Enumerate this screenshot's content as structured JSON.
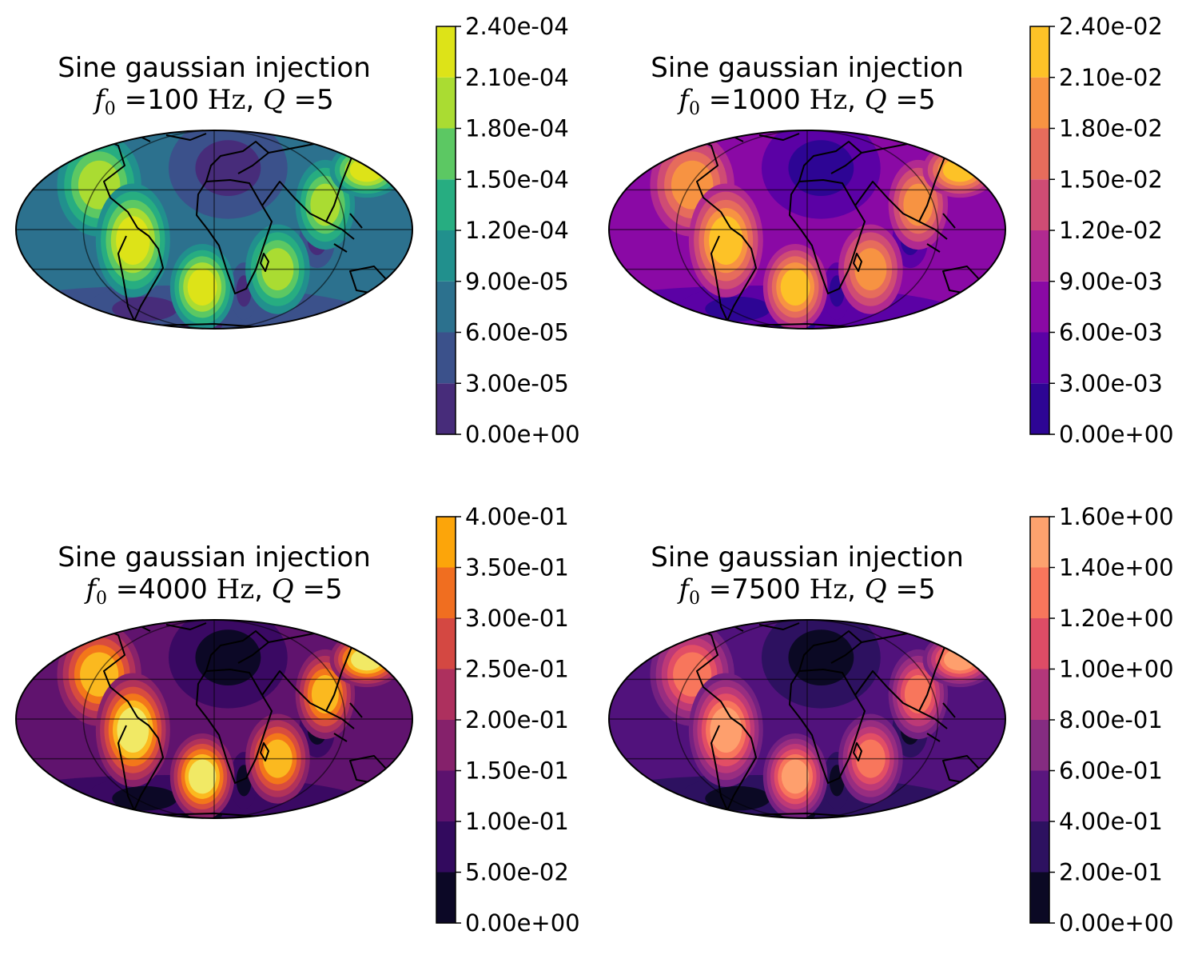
{
  "chart_data": [
    {
      "type": "heatmap",
      "projection": "mollweide",
      "title_line1": "Sine gaussian injection",
      "f0_label": "100",
      "unit": "Hz",
      "q_label": "5",
      "colormap": "viridis",
      "levels": [
        "0.00e+00",
        "3.00e-05",
        "6.00e-05",
        "9.00e-05",
        "1.20e-04",
        "1.50e-04",
        "1.80e-04",
        "2.10e-04",
        "2.40e-04"
      ],
      "level_values": [
        0,
        3e-05,
        6e-05,
        9e-05,
        0.00012,
        0.00015,
        0.00018,
        0.00021,
        0.00024
      ],
      "band_colors": [
        "#472c7a",
        "#3b518b",
        "#2c718e",
        "#21908d",
        "#27ad81",
        "#5cc863",
        "#aadc32",
        "#dde318"
      ],
      "background_band": 2
    },
    {
      "type": "heatmap",
      "projection": "mollweide",
      "title_line1": "Sine gaussian injection",
      "f0_label": "1000",
      "unit": "Hz",
      "q_label": "5",
      "colormap": "plasma",
      "levels": [
        "0.00e+00",
        "3.00e-03",
        "6.00e-03",
        "9.00e-03",
        "1.20e-02",
        "1.50e-02",
        "1.80e-02",
        "2.10e-02",
        "2.40e-02"
      ],
      "level_values": [
        0,
        0.003,
        0.006,
        0.009,
        0.012,
        0.015,
        0.018,
        0.021,
        0.024
      ],
      "band_colors": [
        "#2d0594",
        "#5b01a5",
        "#8a09a5",
        "#b12a90",
        "#cf4c74",
        "#e66c5c",
        "#f79342",
        "#fdc227"
      ],
      "background_band": 2
    },
    {
      "type": "heatmap",
      "projection": "mollweide",
      "title_line1": "Sine gaussian injection",
      "f0_label": "4000",
      "unit": "Hz",
      "q_label": "5",
      "colormap": "inferno",
      "levels": [
        "0.00e+00",
        "5.00e-02",
        "1.00e-01",
        "1.50e-01",
        "2.00e-01",
        "2.50e-01",
        "3.00e-01",
        "3.50e-01",
        "4.00e-01"
      ],
      "level_values": [
        0,
        0.05,
        0.1,
        0.15,
        0.2,
        0.25,
        0.3,
        0.35,
        0.4
      ],
      "band_colors": [
        "#0c0826",
        "#3a0963",
        "#60136e",
        "#89226a",
        "#b1325a",
        "#d84c3e",
        "#f3771a",
        "#fbb91f",
        "#f1e965"
      ],
      "colorbar_colors": [
        "#0c0826",
        "#320a5e",
        "#5c126e",
        "#85216b",
        "#ad305e",
        "#d44842",
        "#f06e20",
        "#fca50a",
        "#f1e965"
      ],
      "background_band": 2
    },
    {
      "type": "heatmap",
      "projection": "mollweide",
      "title_line1": "Sine gaussian injection",
      "f0_label": "7500",
      "unit": "Hz",
      "q_label": "5",
      "colormap": "magma",
      "levels": [
        "0.00e+00",
        "2.00e-01",
        "4.00e-01",
        "6.00e-01",
        "8.00e-01",
        "1.00e+00",
        "1.20e+00",
        "1.40e+00",
        "1.60e+00"
      ],
      "level_values": [
        0,
        0.2,
        0.4,
        0.6,
        0.8,
        1.0,
        1.2,
        1.4,
        1.6
      ],
      "band_colors": [
        "#0b0924",
        "#2d1160",
        "#51127c",
        "#752181",
        "#982d80",
        "#bd3977",
        "#e24e65",
        "#f8765c",
        "#fe9f6d",
        "#fde2a3"
      ],
      "colorbar_colors": [
        "#0b0924",
        "#2d1160",
        "#5a167e",
        "#852c81",
        "#b3377a",
        "#dd4c66",
        "#f8765c",
        "#fda26e",
        "#fde2a3"
      ],
      "background_band": 2
    }
  ]
}
